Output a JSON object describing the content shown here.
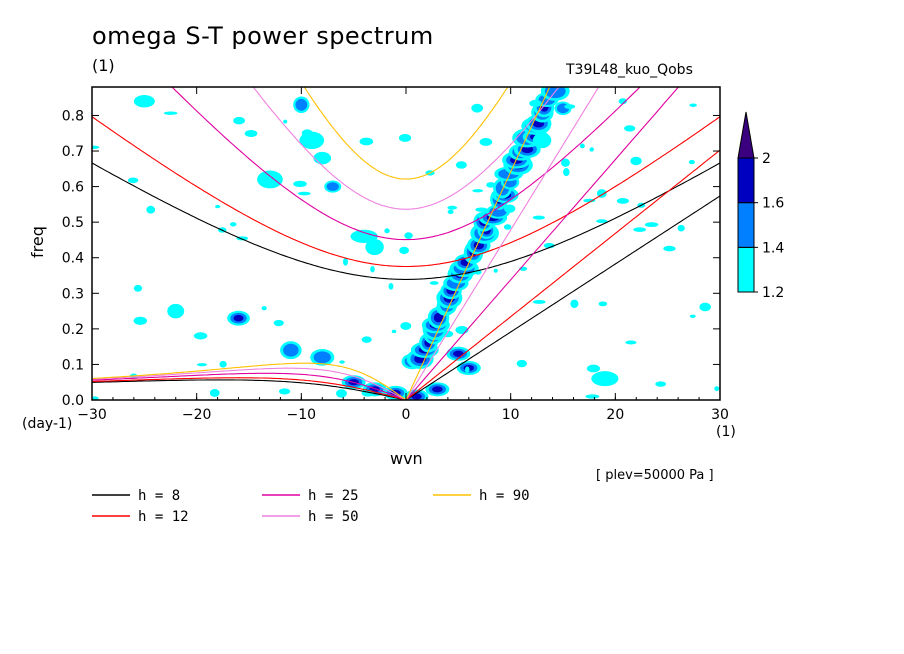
{
  "title": "omega S-T power spectrum",
  "subtitle": "(1)",
  "run_name": "T39L48_kuo_Qobs",
  "plev_note": "[ plev=50000 Pa ]",
  "chart_data": {
    "type": "heatmap",
    "xlabel": "wvn",
    "xunit": "(1)",
    "ylabel": "freq",
    "yunit": "(day-1)",
    "xlim": [
      -30,
      30
    ],
    "ylim": [
      0,
      0.88
    ],
    "xticks": [
      -30,
      -20,
      -10,
      0,
      10,
      20,
      30
    ],
    "yticks": [
      0.0,
      0.1,
      0.2,
      0.3,
      0.4,
      0.5,
      0.6,
      0.7,
      0.8
    ],
    "colorbar": {
      "levels": [
        1.2,
        1.4,
        1.6,
        2
      ],
      "colors": [
        "#00ffff",
        "#0080ff",
        "#0000c0",
        "#3a0080"
      ],
      "labels": [
        "1.2",
        "1.4",
        "1.6",
        "2"
      ]
    },
    "dispersion_curves": [
      {
        "label": "h = 8",
        "h": 8,
        "color": "#000000"
      },
      {
        "label": "h = 12",
        "h": 12,
        "color": "#ff0000"
      },
      {
        "label": "h = 25",
        "h": 25,
        "color": "#e000a0"
      },
      {
        "label": "h = 50",
        "h": 50,
        "color": "#f080e0"
      },
      {
        "label": "h = 90",
        "h": 90,
        "color": "#ffc000"
      }
    ],
    "kelvin_band": {
      "x_start": 1,
      "x_end": 14,
      "y_start": 0.1,
      "y_end": 0.86,
      "level": 1.6
    }
  }
}
